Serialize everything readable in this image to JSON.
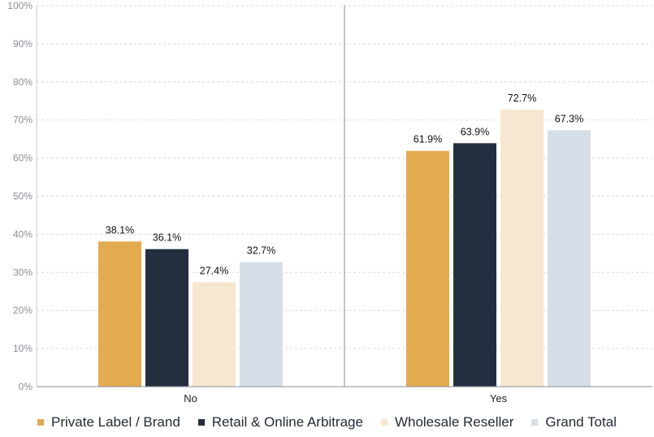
{
  "chart_data": {
    "type": "bar",
    "categories": [
      "No",
      "Yes"
    ],
    "series": [
      {
        "name": "Private Label / Brand",
        "color": "#E4AA50",
        "values": [
          38.1,
          61.9
        ]
      },
      {
        "name": "Retail & Online Arbitrage",
        "color": "#232E3F",
        "values": [
          36.1,
          63.9
        ]
      },
      {
        "name": "Wholesale Reseller",
        "color": "#F6E7D0",
        "values": [
          27.4,
          72.7
        ]
      },
      {
        "name": "Grand Total",
        "color": "#D6DEE8",
        "values": [
          32.7,
          67.3
        ]
      }
    ],
    "data_labels": [
      [
        "38.1%",
        "61.9%"
      ],
      [
        "36.1%",
        "63.9%"
      ],
      [
        "27.4%",
        "72.7%"
      ],
      [
        "32.7%",
        "67.3%"
      ]
    ],
    "y_ticks": [
      "0%",
      "10%",
      "20%",
      "30%",
      "40%",
      "50%",
      "60%",
      "70%",
      "80%",
      "90%",
      "100%"
    ],
    "ylim": [
      0,
      100
    ],
    "title": "",
    "xlabel": "",
    "ylabel": "",
    "grid": true,
    "legend_position": "bottom"
  }
}
